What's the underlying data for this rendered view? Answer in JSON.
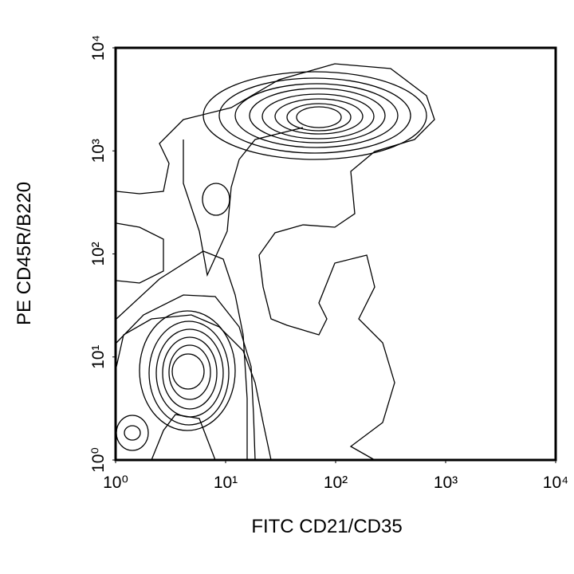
{
  "chart_data": {
    "type": "contour",
    "x_label": "FITC CD21/CD35",
    "y_label": "PE CD45R/B220",
    "xscale": "log",
    "yscale": "log",
    "xlim": [
      1,
      10000
    ],
    "ylim": [
      1,
      10000
    ],
    "xticks": [
      {
        "value": 1,
        "label": "10⁰"
      },
      {
        "value": 10,
        "label": "10¹"
      },
      {
        "value": 100,
        "label": "10²"
      },
      {
        "value": 1000,
        "label": "10³"
      },
      {
        "value": 10000,
        "label": "10⁴"
      }
    ],
    "yticks": [
      {
        "value": 1,
        "label": "10⁰"
      },
      {
        "value": 10,
        "label": "10¹"
      },
      {
        "value": 100,
        "label": "10²"
      },
      {
        "value": 1000,
        "label": "10³"
      },
      {
        "value": 10000,
        "label": "10⁴"
      }
    ],
    "grid": false,
    "color": "#000000"
  }
}
